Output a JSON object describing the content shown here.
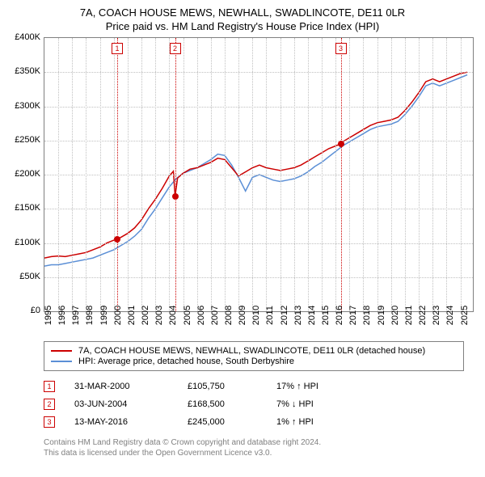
{
  "title": {
    "line1": "7A, COACH HOUSE MEWS, NEWHALL, SWADLINCOTE, DE11 0LR",
    "line2": "Price paid vs. HM Land Registry's House Price Index (HPI)"
  },
  "chart": {
    "type": "line",
    "background_color": "#ffffff",
    "border_color": "#808080",
    "grid_color": "#c0c0c0",
    "grid_style": "dotted",
    "xlim": [
      1995,
      2025.9
    ],
    "ylim": [
      0,
      400000
    ],
    "ytick_step": 50000,
    "yticks": [
      {
        "v": 0,
        "label": "£0"
      },
      {
        "v": 50000,
        "label": "£50K"
      },
      {
        "v": 100000,
        "label": "£100K"
      },
      {
        "v": 150000,
        "label": "£150K"
      },
      {
        "v": 200000,
        "label": "£200K"
      },
      {
        "v": 250000,
        "label": "£250K"
      },
      {
        "v": 300000,
        "label": "£300K"
      },
      {
        "v": 350000,
        "label": "£350K"
      },
      {
        "v": 400000,
        "label": "£400K"
      }
    ],
    "xticks": [
      1995,
      1996,
      1997,
      1998,
      1999,
      2000,
      2001,
      2002,
      2003,
      2004,
      2005,
      2006,
      2007,
      2008,
      2009,
      2010,
      2011,
      2012,
      2013,
      2014,
      2015,
      2016,
      2017,
      2018,
      2019,
      2020,
      2021,
      2022,
      2023,
      2024,
      2025
    ],
    "title_fontsize": 13,
    "axis_fontsize": 11,
    "series": [
      {
        "id": "property",
        "color": "#cc0000",
        "width": 1.5,
        "label": "7A, COACH HOUSE MEWS, NEWHALL, SWADLINCOTE, DE11 0LR (detached house)",
        "points": [
          [
            1995.0,
            78000
          ],
          [
            1995.5,
            80000
          ],
          [
            1996.0,
            81000
          ],
          [
            1996.5,
            80000
          ],
          [
            1997.0,
            82000
          ],
          [
            1997.5,
            84000
          ],
          [
            1998.0,
            86000
          ],
          [
            1998.5,
            90000
          ],
          [
            1999.0,
            94000
          ],
          [
            1999.5,
            100000
          ],
          [
            2000.0,
            104000
          ],
          [
            2000.25,
            105750
          ],
          [
            2000.5,
            108000
          ],
          [
            2001.0,
            114000
          ],
          [
            2001.5,
            122000
          ],
          [
            2002.0,
            134000
          ],
          [
            2002.5,
            150000
          ],
          [
            2003.0,
            164000
          ],
          [
            2003.5,
            180000
          ],
          [
            2004.0,
            198000
          ],
          [
            2004.3,
            205000
          ],
          [
            2004.42,
            168500
          ],
          [
            2004.6,
            195000
          ],
          [
            2005.0,
            202000
          ],
          [
            2005.5,
            208000
          ],
          [
            2006.0,
            210000
          ],
          [
            2006.5,
            214000
          ],
          [
            2007.0,
            218000
          ],
          [
            2007.5,
            224000
          ],
          [
            2008.0,
            222000
          ],
          [
            2008.5,
            210000
          ],
          [
            2009.0,
            198000
          ],
          [
            2009.5,
            204000
          ],
          [
            2010.0,
            210000
          ],
          [
            2010.5,
            214000
          ],
          [
            2011.0,
            210000
          ],
          [
            2011.5,
            208000
          ],
          [
            2012.0,
            206000
          ],
          [
            2012.5,
            208000
          ],
          [
            2013.0,
            210000
          ],
          [
            2013.5,
            214000
          ],
          [
            2014.0,
            220000
          ],
          [
            2014.5,
            226000
          ],
          [
            2015.0,
            232000
          ],
          [
            2015.5,
            238000
          ],
          [
            2016.0,
            242000
          ],
          [
            2016.37,
            245000
          ],
          [
            2016.5,
            248000
          ],
          [
            2017.0,
            254000
          ],
          [
            2017.5,
            260000
          ],
          [
            2018.0,
            266000
          ],
          [
            2018.5,
            272000
          ],
          [
            2019.0,
            276000
          ],
          [
            2019.5,
            278000
          ],
          [
            2020.0,
            280000
          ],
          [
            2020.5,
            284000
          ],
          [
            2021.0,
            294000
          ],
          [
            2021.5,
            306000
          ],
          [
            2022.0,
            320000
          ],
          [
            2022.5,
            336000
          ],
          [
            2023.0,
            340000
          ],
          [
            2023.5,
            336000
          ],
          [
            2024.0,
            340000
          ],
          [
            2024.5,
            344000
          ],
          [
            2025.0,
            348000
          ],
          [
            2025.5,
            350000
          ]
        ]
      },
      {
        "id": "hpi",
        "color": "#5b8fd6",
        "width": 1.5,
        "label": "HPI: Average price, detached house, South Derbyshire",
        "points": [
          [
            1995.0,
            66000
          ],
          [
            1995.5,
            68000
          ],
          [
            1996.0,
            68000
          ],
          [
            1996.5,
            70000
          ],
          [
            1997.0,
            72000
          ],
          [
            1997.5,
            74000
          ],
          [
            1998.0,
            76000
          ],
          [
            1998.5,
            78000
          ],
          [
            1999.0,
            82000
          ],
          [
            1999.5,
            86000
          ],
          [
            2000.0,
            90000
          ],
          [
            2000.5,
            96000
          ],
          [
            2001.0,
            102000
          ],
          [
            2001.5,
            110000
          ],
          [
            2002.0,
            120000
          ],
          [
            2002.5,
            136000
          ],
          [
            2003.0,
            150000
          ],
          [
            2003.5,
            166000
          ],
          [
            2004.0,
            182000
          ],
          [
            2004.5,
            194000
          ],
          [
            2005.0,
            202000
          ],
          [
            2005.5,
            206000
          ],
          [
            2006.0,
            210000
          ],
          [
            2006.5,
            216000
          ],
          [
            2007.0,
            222000
          ],
          [
            2007.5,
            230000
          ],
          [
            2008.0,
            228000
          ],
          [
            2008.5,
            214000
          ],
          [
            2009.0,
            196000
          ],
          [
            2009.5,
            176000
          ],
          [
            2010.0,
            196000
          ],
          [
            2010.5,
            200000
          ],
          [
            2011.0,
            196000
          ],
          [
            2011.5,
            192000
          ],
          [
            2012.0,
            190000
          ],
          [
            2012.5,
            192000
          ],
          [
            2013.0,
            194000
          ],
          [
            2013.5,
            198000
          ],
          [
            2014.0,
            204000
          ],
          [
            2014.5,
            212000
          ],
          [
            2015.0,
            218000
          ],
          [
            2015.5,
            226000
          ],
          [
            2016.0,
            234000
          ],
          [
            2016.5,
            242000
          ],
          [
            2017.0,
            248000
          ],
          [
            2017.5,
            254000
          ],
          [
            2018.0,
            260000
          ],
          [
            2018.5,
            266000
          ],
          [
            2019.0,
            270000
          ],
          [
            2019.5,
            272000
          ],
          [
            2020.0,
            274000
          ],
          [
            2020.5,
            278000
          ],
          [
            2021.0,
            288000
          ],
          [
            2021.5,
            300000
          ],
          [
            2022.0,
            314000
          ],
          [
            2022.5,
            330000
          ],
          [
            2023.0,
            334000
          ],
          [
            2023.5,
            330000
          ],
          [
            2024.0,
            334000
          ],
          [
            2024.5,
            338000
          ],
          [
            2025.0,
            342000
          ],
          [
            2025.5,
            346000
          ]
        ]
      }
    ],
    "markers": [
      {
        "n": "1",
        "x": 2000.25,
        "y": 105750
      },
      {
        "n": "2",
        "x": 2004.42,
        "y": 168500
      },
      {
        "n": "3",
        "x": 2016.37,
        "y": 245000
      }
    ],
    "marker_line_color": "#cc0000",
    "marker_box_border": "#cc0000",
    "marker_box_bg": "#ffffff",
    "marker_box_text": "#cc0000",
    "marker_dot_color": "#cc0000"
  },
  "legend": {
    "border_color": "#808080",
    "fontsize": 11
  },
  "transactions": [
    {
      "n": "1",
      "date": "31-MAR-2000",
      "price": "£105,750",
      "hpi": "17% ↑ HPI"
    },
    {
      "n": "2",
      "date": "03-JUN-2004",
      "price": "£168,500",
      "hpi": "7% ↓ HPI"
    },
    {
      "n": "3",
      "date": "13-MAY-2016",
      "price": "£245,000",
      "hpi": "1% ↑ HPI"
    }
  ],
  "footnote": {
    "line1": "Contains HM Land Registry data © Crown copyright and database right 2024.",
    "line2": "This data is licensed under the Open Government Licence v3.0.",
    "color": "#808080",
    "fontsize": 10
  }
}
